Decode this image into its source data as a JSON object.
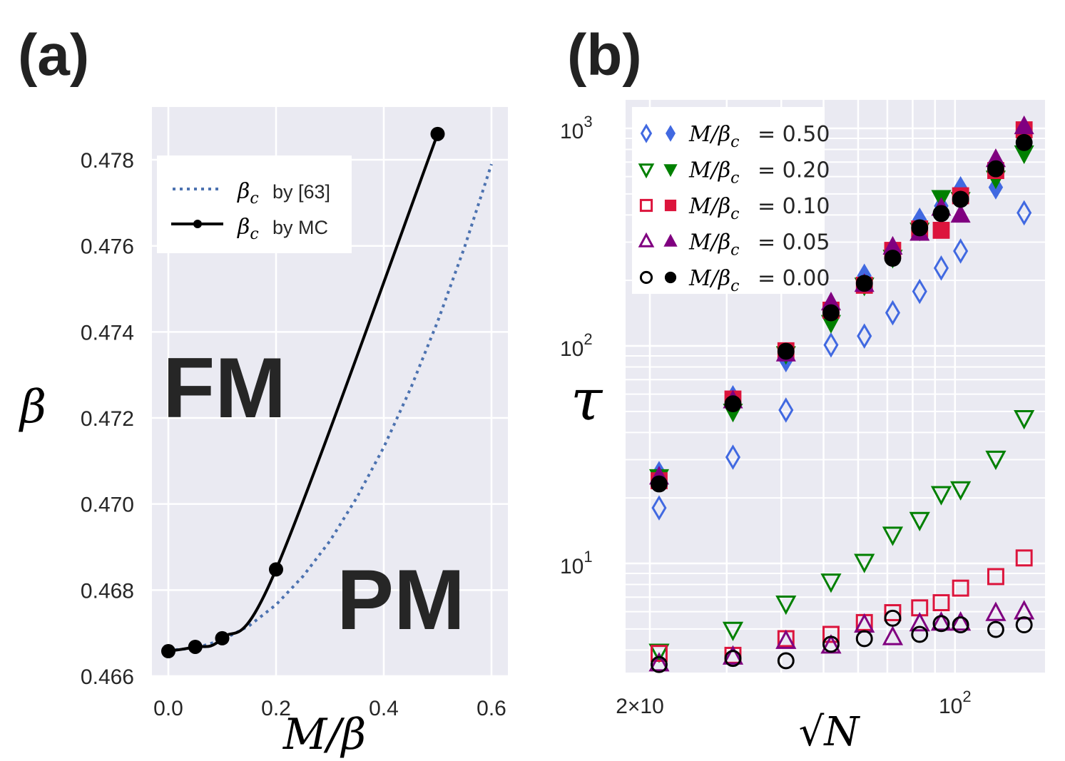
{
  "chart_data": [
    {
      "panel_label": "(a)",
      "type": "line",
      "xlabel": "M/β",
      "ylabel": "β",
      "xlim": [
        -0.03,
        0.63
      ],
      "ylim": [
        0.466,
        0.4792
      ],
      "xticks": [
        0.0,
        0.2,
        0.4,
        0.6
      ],
      "xtick_labels": [
        "0.0",
        "0.2",
        "0.4",
        "0.6"
      ],
      "yticks": [
        0.466,
        0.468,
        0.47,
        0.472,
        0.474,
        0.476,
        0.478
      ],
      "ytick_labels": [
        "0.466",
        "0.468",
        "0.470",
        "0.472",
        "0.474",
        "0.476",
        "0.478"
      ],
      "grid": true,
      "legend_position": "top-left",
      "annotations": [
        "FM",
        "PM"
      ],
      "series": [
        {
          "name": "β_c by [63]",
          "legend_math": "β",
          "legend_sub": "c",
          "legend_text": "by [63]",
          "style": "dotted",
          "color": "#4c72b0",
          "x": [
            0,
            0.05,
            0.1,
            0.15,
            0.2,
            0.25,
            0.3,
            0.35,
            0.4,
            0.45,
            0.5,
            0.55,
            0.6
          ],
          "y": [
            0.4666,
            0.46665,
            0.46684,
            0.46717,
            0.46766,
            0.46832,
            0.46914,
            0.47015,
            0.47132,
            0.47269,
            0.47424,
            0.47597,
            0.4779
          ]
        },
        {
          "name": "β_c by MC",
          "legend_math": "β",
          "legend_sub": "c",
          "legend_text": "by MC",
          "style": "solid-marker",
          "color": "#000000",
          "x": [
            0,
            0.05,
            0.1,
            0.2,
            0.5
          ],
          "y": [
            0.46658,
            0.46668,
            0.46688,
            0.46848,
            0.4786
          ]
        }
      ]
    },
    {
      "panel_label": "(b)",
      "type": "scatter",
      "xscale": "log",
      "yscale": "log",
      "xlabel": "√N",
      "ylabel": "τ",
      "xlim": [
        19.2,
        165
      ],
      "ylim": [
        3.2,
        1350
      ],
      "xticks": [
        20,
        100
      ],
      "xtick_labels": [
        "2×10",
        "10^2"
      ],
      "yticks": [
        10,
        100,
        1000
      ],
      "ytick_labels": [
        "10^1",
        "10^2",
        "10^3"
      ],
      "grid": true,
      "legend_position": "top-left",
      "x": [
        21,
        31,
        41,
        52,
        62,
        72,
        83,
        93,
        103,
        124,
        144
      ],
      "series": [
        {
          "name": "M/β_c= 0.50",
          "value_label": "= 0.50",
          "marker": "diamond",
          "color": "#4169e1",
          "hollow": [
            18.0,
            30.8,
            50.7,
            101,
            111,
            142,
            178,
            228,
            273,
            697,
            409
          ],
          "filled": [
            26,
            58,
            86,
            145,
            210,
            270,
            380,
            440,
            530,
            536,
            860
          ]
        },
        {
          "name": "M/β_c= 0.20",
          "value_label": "= 0.20",
          "marker": "triangle-down",
          "color": "#008000",
          "hollow": [
            3.94,
            4.97,
            6.56,
            8.28,
            10.2,
            13.6,
            15.9,
            20.9,
            22.0,
            30.4,
            46.7
          ],
          "filled": [
            25,
            50,
            92,
            128,
            190,
            255,
            340,
            480,
            470,
            590,
            770
          ]
        },
        {
          "name": "M/β_c= 0.10",
          "value_label": "= 0.10",
          "marker": "square",
          "color": "#dc143c",
          "hollow": [
            3.86,
            3.78,
            4.51,
            4.72,
            5.35,
            5.94,
            6.25,
            6.6,
            7.7,
            8.7,
            10.6
          ],
          "filled": [
            24,
            57,
            95,
            146,
            190,
            275,
            345,
            340,
            490,
            640,
            985
          ]
        },
        {
          "name": "M/β_c= 0.05",
          "value_label": "= 0.05",
          "marker": "triangle-up",
          "color": "#800080",
          "hollow": [
            3.46,
            3.72,
            4.39,
            4.18,
            5.22,
            4.57,
            5.29,
            5.33,
            5.33,
            5.9,
            6.0
          ],
          "filled": [
            25,
            56,
            92,
            158,
            192,
            285,
            330,
            430,
            400,
            720,
            1020
          ]
        },
        {
          "name": "M/β_c= 0.00",
          "value_label": "= 0.00",
          "marker": "circle",
          "color": "#000000",
          "hollow": [
            3.43,
            3.66,
            3.57,
            4.25,
            4.51,
            5.6,
            4.72,
            5.29,
            5.22,
            4.97,
            5.22
          ],
          "filled": [
            23.2,
            54.2,
            94.5,
            142,
            194,
            253,
            349,
            406,
            472,
            652,
            861
          ]
        }
      ]
    }
  ],
  "legend_b_math": "M/β",
  "legend_b_sub": "c"
}
